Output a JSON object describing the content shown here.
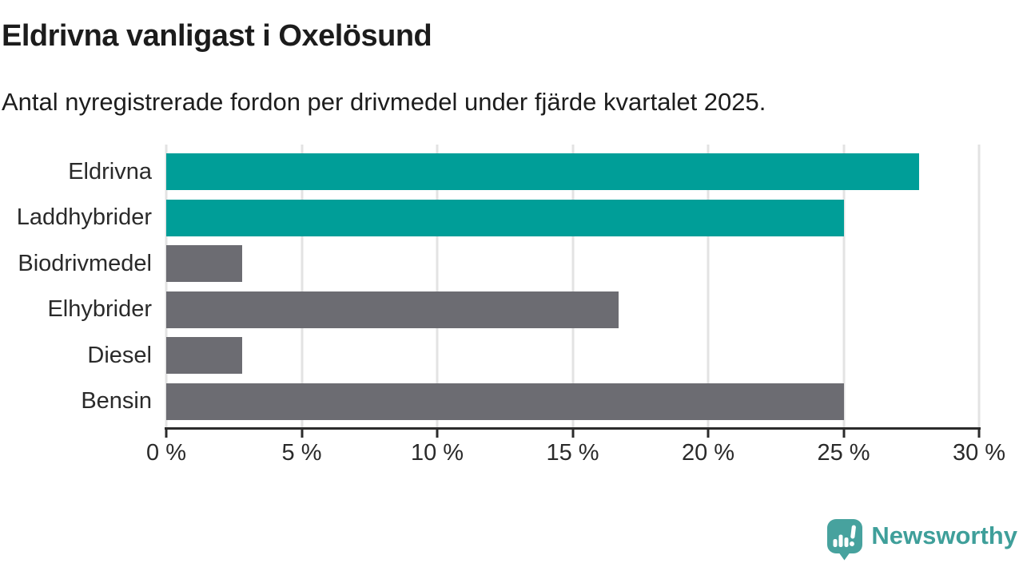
{
  "title": "Eldrivna vanligast i Oxelösund",
  "subtitle": "Antal nyregistrerade fordon per drivmedel under fjärde kvartalet 2025.",
  "colors": {
    "electric_bar": "#009e98",
    "other_bar": "#6c6c72",
    "axis": "#2b2b2b",
    "gridline": "#e3e3e3",
    "text": "#1c1c1c",
    "logo": "#47a29e"
  },
  "chart_data": {
    "type": "bar",
    "orientation": "horizontal",
    "title": "Eldrivna vanligast i Oxelösund",
    "subtitle": "Antal nyregistrerade fordon per drivmedel under fjärde kvartalet 2025.",
    "categories": [
      "Eldrivna",
      "Laddhybrider",
      "Biodrivmedel",
      "Elhybrider",
      "Diesel",
      "Bensin"
    ],
    "values": [
      27.8,
      25.0,
      2.8,
      16.7,
      2.8,
      25.0
    ],
    "bar_colors": [
      "#009e98",
      "#009e98",
      "#6c6c72",
      "#6c6c72",
      "#6c6c72",
      "#6c6c72"
    ],
    "xlabel": "",
    "ylabel": "",
    "xlim": [
      0,
      30
    ],
    "x_ticks": [
      0,
      5,
      10,
      15,
      20,
      25,
      30
    ],
    "x_tick_labels": [
      "0 %",
      "5 %",
      "10 %",
      "15 %",
      "20 %",
      "25 %",
      "30 %"
    ],
    "grid": true,
    "legend": false
  },
  "branding": {
    "logo_text": "Newsworthy",
    "logo_icon": "speech-bubble-bar-chart"
  }
}
